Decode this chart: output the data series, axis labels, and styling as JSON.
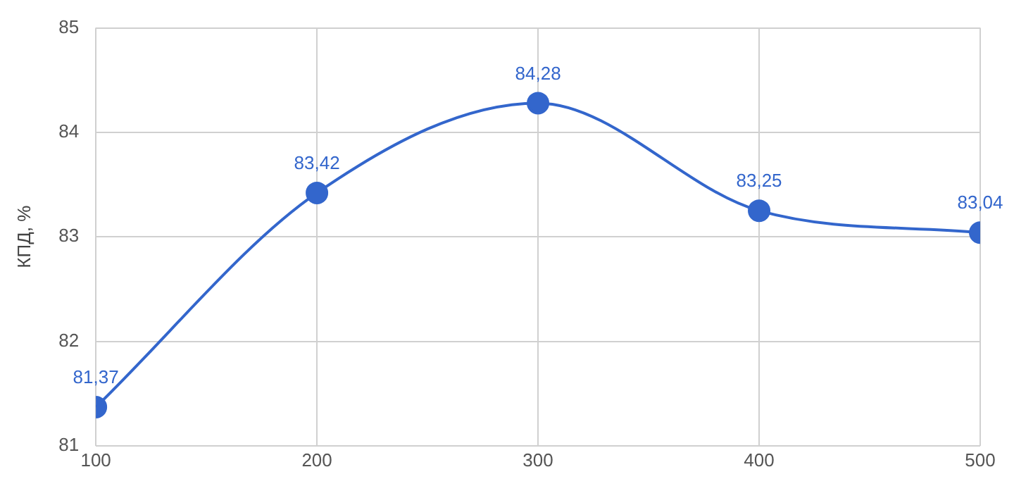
{
  "chart_data": {
    "type": "line",
    "ylabel": "КПД, %",
    "x": [
      100,
      200,
      300,
      400,
      500
    ],
    "series": [
      {
        "color": "#3366cc",
        "values": [
          81.37,
          83.42,
          84.28,
          83.25,
          83.04
        ],
        "value_labels": [
          "81,37",
          "83,42",
          "84,28",
          "83,25",
          "83,04"
        ]
      }
    ],
    "xlim": [
      100,
      500
    ],
    "xticks": [
      100,
      200,
      300,
      400,
      500
    ],
    "ylim": [
      81,
      85
    ],
    "yticks": [
      81,
      82,
      83,
      84,
      85
    ],
    "grid": true,
    "legend": false,
    "marker": "circle",
    "line_style": "solid"
  }
}
